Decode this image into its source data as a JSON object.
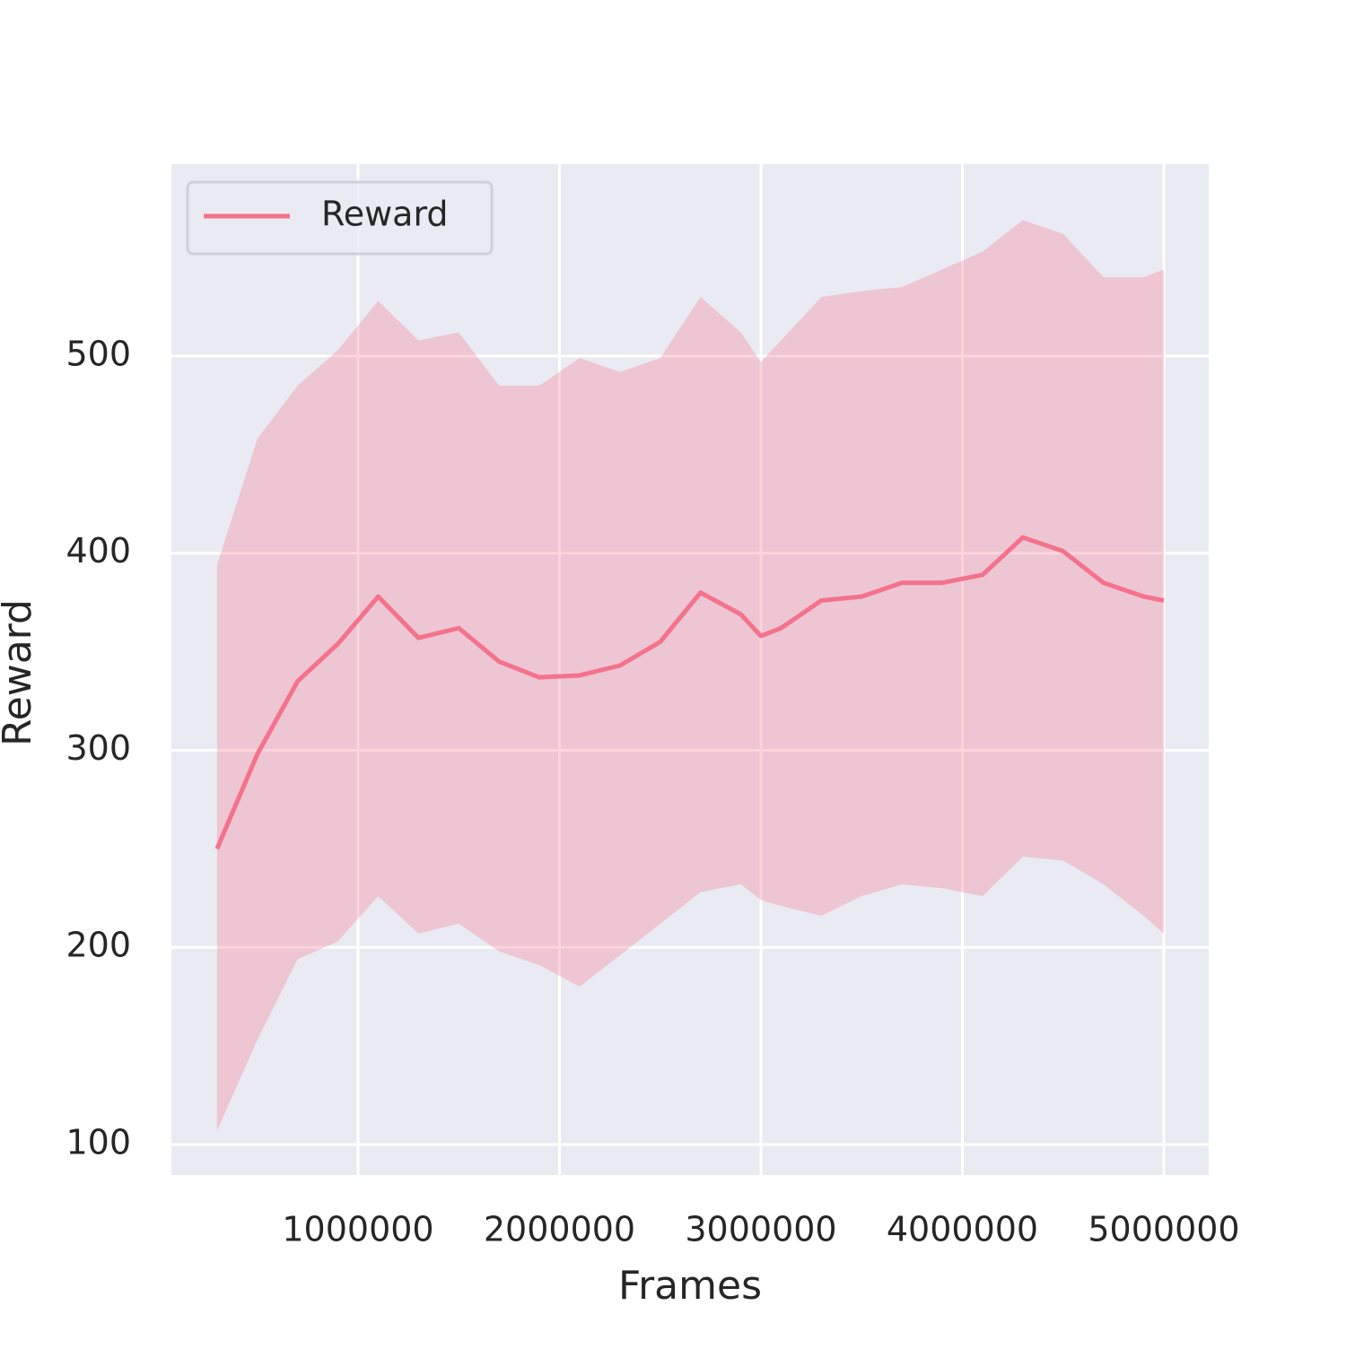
{
  "chart_data": {
    "type": "line",
    "xlabel": "Frames",
    "ylabel": "Reward",
    "x": [
      300000,
      500000,
      700000,
      900000,
      1100000,
      1300000,
      1500000,
      1700000,
      1900000,
      2100000,
      2300000,
      2500000,
      2700000,
      2900000,
      3000000,
      3100000,
      3300000,
      3500000,
      3700000,
      3900000,
      4100000,
      4300000,
      4500000,
      4700000,
      4900000,
      5000000
    ],
    "series": [
      {
        "name": "Reward",
        "color": "#f4728c",
        "values": [
          250,
          298,
          335,
          354,
          378,
          357,
          362,
          345,
          337,
          338,
          343,
          355,
          380,
          369,
          358,
          362,
          376,
          378,
          385,
          385,
          389,
          408,
          401,
          385,
          378,
          376
        ],
        "lower": [
          107,
          153,
          194,
          203,
          226,
          207,
          212,
          198,
          191,
          180,
          196,
          212,
          228,
          232,
          224,
          221,
          216,
          226,
          232,
          230,
          226,
          246,
          244,
          232,
          216,
          207
        ],
        "upper": [
          394,
          458,
          485,
          503,
          528,
          508,
          512,
          485,
          485,
          499,
          492,
          499,
          530,
          512,
          497,
          508,
          530,
          533,
          535,
          544,
          553,
          569,
          562,
          540,
          540,
          544
        ]
      }
    ],
    "xlim": [
      73500,
      5222700
    ],
    "ylim": [
      84.5,
      597.4
    ],
    "xticks": [
      1000000,
      2000000,
      3000000,
      4000000,
      5000000
    ],
    "yticks": [
      100,
      200,
      300,
      400,
      500
    ],
    "grid": true,
    "legend": "upper left"
  }
}
